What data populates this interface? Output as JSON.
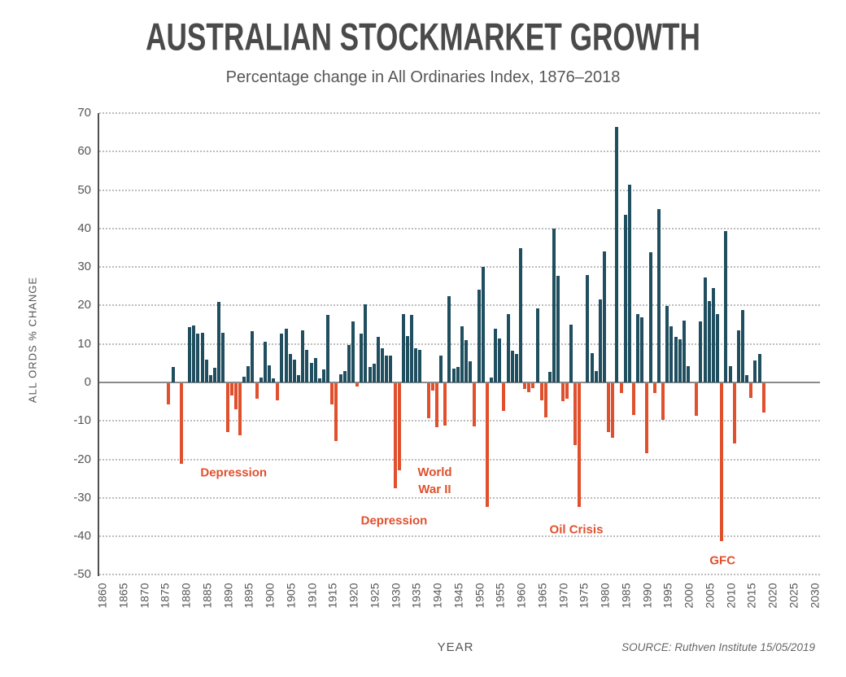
{
  "chart_data": {
    "type": "bar",
    "title": "AUSTRALIAN STOCKMARKET GROWTH",
    "subtitle": "Percentage change in All Ordinaries Index, 1876–2018",
    "xlabel": "YEAR",
    "ylabel": "ALL ORDS % CHANGE",
    "source": "SOURCE: Ruthven Institute 15/05/2019",
    "start_year": 1876,
    "end_year": 2018,
    "ylim": [
      -50,
      70
    ],
    "xlim": [
      1860,
      2030
    ],
    "grid": "horizontal-dotted",
    "legend": "none",
    "y_ticks": [
      70,
      60,
      50,
      40,
      30,
      20,
      10,
      0,
      -10,
      -20,
      -30,
      -40,
      -50
    ],
    "x_ticks": [
      1860,
      1865,
      1870,
      1875,
      1880,
      1885,
      1890,
      1895,
      1900,
      1905,
      1910,
      1915,
      1920,
      1925,
      1930,
      1935,
      1940,
      1945,
      1950,
      1955,
      1960,
      1965,
      1970,
      1975,
      1980,
      1985,
      1990,
      1995,
      2000,
      2005,
      2010,
      2015,
      2020,
      2025,
      2030
    ],
    "values": [
      -5.5,
      4,
      0,
      -21,
      0,
      14.4,
      14.9,
      12.8,
      13,
      6,
      2,
      3.8,
      21,
      13,
      -12.7,
      -3.2,
      -6.7,
      -13.6,
      1.5,
      4.2,
      13.4,
      -4,
      1.3,
      10.6,
      4.4,
      1,
      -4.4,
      12.7,
      14,
      7.3,
      6,
      2,
      13.6,
      8.5,
      5,
      6.3,
      1,
      3.4,
      17.5,
      -5.6,
      -15,
      2.1,
      3,
      9.7,
      15.9,
      -0.8,
      12.7,
      20.4,
      4.1,
      4.9,
      11.8,
      8.9,
      7,
      6.9,
      -27.3,
      -22.7,
      17.8,
      12,
      17.6,
      8.8,
      8.5,
      0,
      -9.2,
      -1.8,
      -11.5,
      7,
      -10.9,
      22.5,
      3.7,
      4,
      14.5,
      10.9,
      5.6,
      -11.3,
      24.2,
      30,
      -32.2,
      1.3,
      14,
      11.5,
      -7.2,
      17.8,
      8.3,
      7.3,
      35,
      -1.5,
      -2.3,
      -1.2,
      19.2,
      -4.4,
      -8.9,
      2.7,
      40,
      27.7,
      -4.7,
      -4,
      15,
      -16,
      -32.2,
      0,
      28,
      7.7,
      3,
      21.6,
      34,
      -12.8,
      -14.1,
      66.5,
      -2.6,
      43.6,
      51.5,
      -8.2,
      17.7,
      17,
      -18.1,
      33.8,
      -2.5,
      45.1,
      -9.5,
      19.9,
      14.6,
      11.8,
      11.3,
      16.1,
      4.2,
      0,
      -8.5,
      15.8,
      27.3,
      21.1,
      24.6,
      17.8,
      -41,
      39.3,
      4.2,
      -15.6,
      13.5,
      18.8,
      1.9,
      -3.9,
      5.8,
      7.5,
      -7.6
    ],
    "annotations": [
      {
        "lines": [
          "Depression"
        ],
        "year": 1891.5,
        "level": -23.5
      },
      {
        "lines": [
          "World",
          "War II"
        ],
        "year": 1939.5,
        "level": -25.6
      },
      {
        "lines": [
          "Depression"
        ],
        "year": 1929.8,
        "level": -36.0
      },
      {
        "lines": [
          "Oil Crisis"
        ],
        "year": 1973.3,
        "level": -38.2
      },
      {
        "lines": [
          "GFC"
        ],
        "year": 2008.2,
        "level": -46.3
      }
    ],
    "colors": {
      "positive_bar": "#1F4E5F",
      "negative_bar": "#E0502D",
      "annotation_text": "#E0502D",
      "title_text": "#4A4A4A",
      "axis_text": "#555555",
      "gridline": "#BDBDBD",
      "zero_line": "#8A8A8A",
      "axis_line": "#4F4F4F",
      "background": "#FFFFFF"
    }
  }
}
